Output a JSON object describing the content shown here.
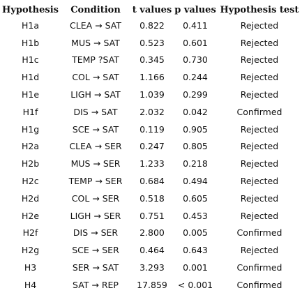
{
  "table": {
    "headers": [
      "Hypothesis",
      "Condition",
      "t values",
      "p values",
      "Hypothesis test"
    ],
    "rows": [
      [
        "H1a",
        "CLEA → SAT",
        "0.822",
        "0.411",
        "Rejected"
      ],
      [
        "H1b",
        "MUS → SAT",
        "0.523",
        "0.601",
        "Rejected"
      ],
      [
        "H1c",
        "TEMP ?SAT",
        "0.345",
        "0.730",
        "Rejected"
      ],
      [
        "H1d",
        "COL → SAT",
        "1.166",
        "0.244",
        "Rejected"
      ],
      [
        "H1e",
        "LIGH → SAT",
        "1.039",
        "0.299",
        "Rejected"
      ],
      [
        "H1f",
        "DIS → SAT",
        "2.032",
        "0.042",
        "Confirmed"
      ],
      [
        "H1g",
        "SCE → SAT",
        "0.119",
        "0.905",
        "Rejected"
      ],
      [
        "H2a",
        "CLEA → SER",
        "0.247",
        "0.805",
        "Rejected"
      ],
      [
        "H2b",
        "MUS → SER",
        "1.233",
        "0.218",
        "Rejected"
      ],
      [
        "H2c",
        "TEMP → SER",
        "0.684",
        "0.494",
        "Rejected"
      ],
      [
        "H2d",
        "COL → SER",
        "0.518",
        "0.605",
        "Rejected"
      ],
      [
        "H2e",
        "LIGH → SER",
        "0.751",
        "0.453",
        "Rejected"
      ],
      [
        "H2f",
        "DIS → SER",
        "2.800",
        "0.005",
        "Confirmed"
      ],
      [
        "H2g",
        "SCE → SER",
        "0.464",
        "0.643",
        "Rejected"
      ],
      [
        "H3",
        "SER → SAT",
        "3.293",
        "0.001",
        "Confirmed"
      ],
      [
        "H4",
        "SAT → REP",
        "17.859",
        "< 0.001",
        "Confirmed"
      ]
    ]
  }
}
